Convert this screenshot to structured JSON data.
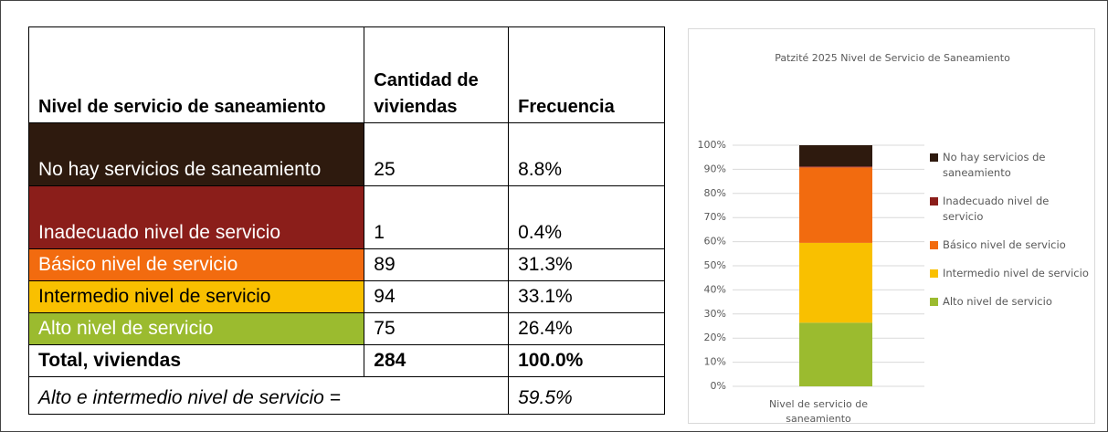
{
  "table": {
    "header": [
      "Nivel de servicio de saneamiento",
      "Cantidad de viviendas",
      "Frecuencia"
    ],
    "rows": [
      [
        "No hay servicios de saneamiento",
        "25",
        "8.8%"
      ],
      [
        "Inadecuado nivel de servicio",
        "1",
        "0.4%"
      ],
      [
        "Básico nivel de servicio",
        "89",
        "31.3%"
      ],
      [
        "Intermedio nivel de servicio",
        "94",
        "33.1%"
      ],
      [
        "Alto nivel de servicio",
        "75",
        "26.4%"
      ]
    ],
    "total": [
      "Total, viviendas",
      "284",
      "100.0%"
    ],
    "summary": [
      "Alto e intermedio nivel de servicio =",
      "59.5%"
    ]
  },
  "chart_data": {
    "type": "stacked_bar",
    "title": "Patzité 2025 Nivel de Servicio de Saneamiento",
    "categories": [
      "Nivel de servicio de saneamiento"
    ],
    "series": [
      {
        "name": "Alto nivel de servicio",
        "color": "#9bbb2f",
        "values": [
          26.4
        ]
      },
      {
        "name": "Intermedio nivel de servicio",
        "color": "#f9c000",
        "values": [
          33.1
        ]
      },
      {
        "name": "Básico nivel de servicio",
        "color": "#f26b0f",
        "values": [
          31.3
        ]
      },
      {
        "name": "Inadecuado nivel de servicio",
        "color": "#8b1e1a",
        "values": [
          0.4
        ]
      },
      {
        "name": "No hay servicios de saneamiento",
        "color": "#2e1a0e",
        "values": [
          8.8
        ]
      }
    ],
    "ylim": [
      0,
      100
    ],
    "yticks": [
      {
        "value": 0,
        "label": "0%"
      },
      {
        "value": 10,
        "label": "10%"
      },
      {
        "value": 20,
        "label": "20%"
      },
      {
        "value": 30,
        "label": "30%"
      },
      {
        "value": 40,
        "label": "40%"
      },
      {
        "value": 50,
        "label": "50%"
      },
      {
        "value": 60,
        "label": "60%"
      },
      {
        "value": 70,
        "label": "70%"
      },
      {
        "value": 80,
        "label": "80%"
      },
      {
        "value": 90,
        "label": "90%"
      },
      {
        "value": 100,
        "label": "100%"
      }
    ],
    "grid": true,
    "legend": "right"
  }
}
